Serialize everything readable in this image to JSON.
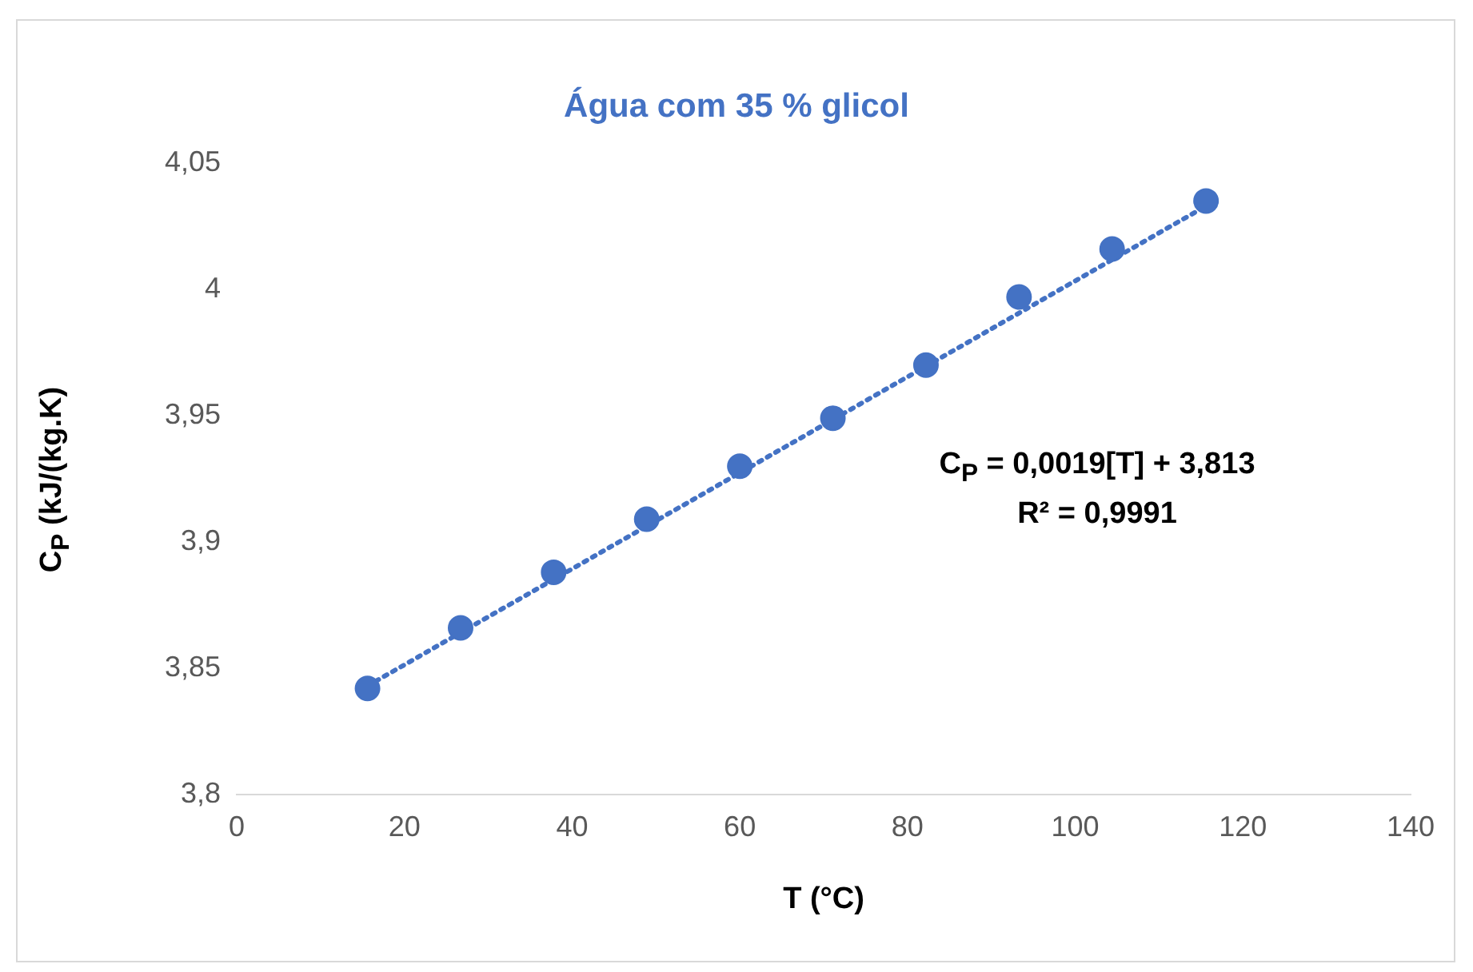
{
  "chart_data": {
    "type": "scatter",
    "title": "Água com 35 % glicol",
    "xlabel": "T (°C)",
    "ylabel": "C$_{P}$ (kJ/(kg.K)",
    "annotations": [
      "C$_{P}$ = 0,0019[T] + 3,813",
      "R² = 0,9991"
    ],
    "series": [
      {
        "color": "#4472c4",
        "marker": "circle",
        "x": [
          15.6,
          26.7,
          37.8,
          48.9,
          60,
          71.1,
          82.2,
          93.3,
          104.4,
          115.6
        ],
        "values": [
          3.842,
          3.866,
          3.888,
          3.909,
          3.93,
          3.949,
          3.97,
          3.997,
          4.016,
          4.035
        ]
      },
      {
        "type": "line",
        "color": "#4472c4",
        "marker": "none",
        "line_style": "dotted",
        "x": [
          15.6,
          115.6
        ],
        "values": [
          3.843,
          4.033
        ]
      }
    ],
    "xlim": [
      0,
      140
    ],
    "xticks": [
      0,
      20,
      40,
      60,
      80,
      100,
      120,
      140
    ],
    "ylim": [
      3.8,
      4.05
    ],
    "yticks": [
      {
        "value": 3.8,
        "label": "3,8"
      },
      {
        "value": 3.85,
        "label": "3,85"
      },
      {
        "value": 3.9,
        "label": "3,9"
      },
      {
        "value": 3.95,
        "label": "3,95"
      },
      {
        "value": 4,
        "label": "4"
      },
      {
        "value": 4.05,
        "label": "4,05"
      }
    ],
    "grid": false,
    "legend": false
  }
}
